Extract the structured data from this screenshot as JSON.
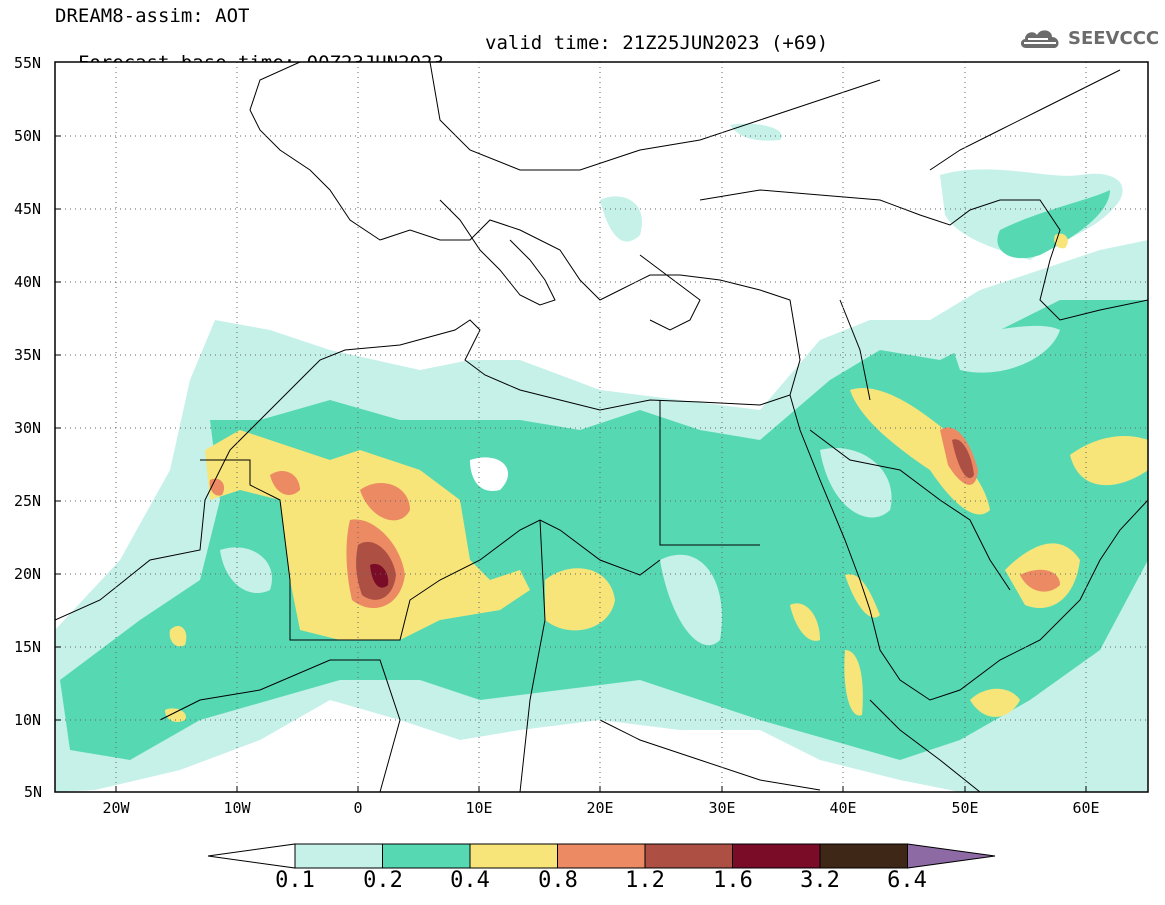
{
  "header": {
    "line1": "DREAM8-assim: AOT",
    "base_time": "Forecast base time: 00Z23JUN2023",
    "valid_time": "valid time: 21Z25JUN2023 (+69)"
  },
  "logo": {
    "text": "SEEVCCC",
    "icon": "cloud-logo-icon"
  },
  "map": {
    "lat_labels": [
      "55N",
      "50N",
      "45N",
      "40N",
      "35N",
      "30N",
      "25N",
      "20N",
      "15N",
      "10N",
      "5N"
    ],
    "lon_labels": [
      "20W",
      "10W",
      "0",
      "10E",
      "20E",
      "30E",
      "40E",
      "50E",
      "60E"
    ],
    "lat_range": [
      5,
      55
    ],
    "lon_range": [
      -25,
      65
    ],
    "gridlines": "dotted"
  },
  "legend": {
    "levels": [
      "0.1",
      "0.2",
      "0.4",
      "0.8",
      "1.2",
      "1.6",
      "3.2",
      "6.4"
    ],
    "colors": [
      "#ffffff",
      "#c5f1e9",
      "#56d9b3",
      "#f7e57a",
      "#eb8a63",
      "#ad4f43",
      "#7b0c28",
      "#3e2716",
      "#8e6aa5"
    ]
  }
}
